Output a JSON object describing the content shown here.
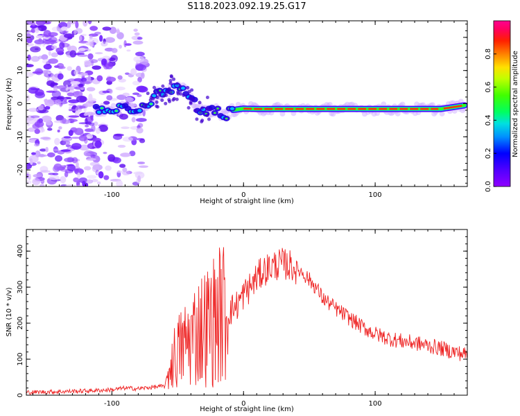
{
  "title": "S118.2023.092.19.25.G17",
  "colors": {
    "snr_line": "#ee2222",
    "axis": "#000000",
    "colormap": [
      "#9000ff",
      "#5000ff",
      "#0000ff",
      "#0090ff",
      "#00e0e0",
      "#00ff60",
      "#40ff00",
      "#c0ff00",
      "#ffe000",
      "#ff8000",
      "#ff2000",
      "#ff0060",
      "#ff0090"
    ]
  },
  "chart_data": [
    {
      "type": "heatmap",
      "title": "",
      "xlabel": "Height of straight line (km)",
      "ylabel": "Frequency (Hz)",
      "xlim": [
        -165,
        170
      ],
      "ylim": [
        -25,
        25
      ],
      "x_ticks": [
        -100,
        0,
        100
      ],
      "y_ticks": [
        -20,
        -10,
        0,
        10,
        20
      ],
      "colorbar": {
        "label": "Normalized spectral amplitude",
        "range": [
          0,
          1
        ],
        "ticks": [
          "0.0",
          "0.2",
          "0.4",
          "0.6",
          "0.8"
        ]
      },
      "ridge": {
        "x": [
          -112,
          -100,
          -90,
          -80,
          -72,
          -65,
          -58,
          -52,
          -45,
          -40,
          -34,
          -27,
          -20,
          -14,
          -10,
          0,
          10,
          40,
          80,
          120,
          150,
          160,
          168
        ],
        "y": [
          -2,
          -2,
          -1,
          -2,
          0,
          3,
          4,
          5,
          4,
          2,
          -2,
          -2,
          -2,
          -4,
          -2,
          -1.5,
          -1.6,
          -1.6,
          -1.6,
          -1.6,
          -1.6,
          -1,
          -0.5
        ]
      },
      "noise_region_x": [
        -165,
        -75
      ]
    },
    {
      "type": "line",
      "title": "",
      "xlabel": "Height of straight line (km)",
      "ylabel": "SNR (10 * v/v)",
      "xlim": [
        -165,
        170
      ],
      "ylim": [
        0,
        460
      ],
      "x_ticks": [
        -100,
        0,
        100
      ],
      "y_ticks": [
        0,
        100,
        200,
        300,
        400
      ],
      "series": [
        {
          "x": [
            -165,
            -140,
            -120,
            -100,
            -90,
            -80,
            -70,
            -60,
            -55,
            -50,
            -45,
            -40,
            -35,
            -30,
            -25,
            -20,
            -15,
            -10,
            -5,
            0,
            5,
            10,
            15,
            20,
            25,
            30,
            35,
            40,
            45,
            50,
            55,
            60,
            70,
            80,
            90,
            100,
            110,
            120,
            130,
            140,
            150,
            160,
            170
          ],
          "y": [
            8,
            10,
            12,
            15,
            20,
            18,
            22,
            25,
            90,
            120,
            140,
            160,
            180,
            190,
            200,
            220,
            230,
            235,
            250,
            280,
            300,
            325,
            345,
            355,
            362,
            365,
            360,
            352,
            340,
            320,
            300,
            270,
            240,
            215,
            190,
            170,
            158,
            150,
            145,
            138,
            130,
            120,
            112
          ]
        }
      ]
    }
  ]
}
